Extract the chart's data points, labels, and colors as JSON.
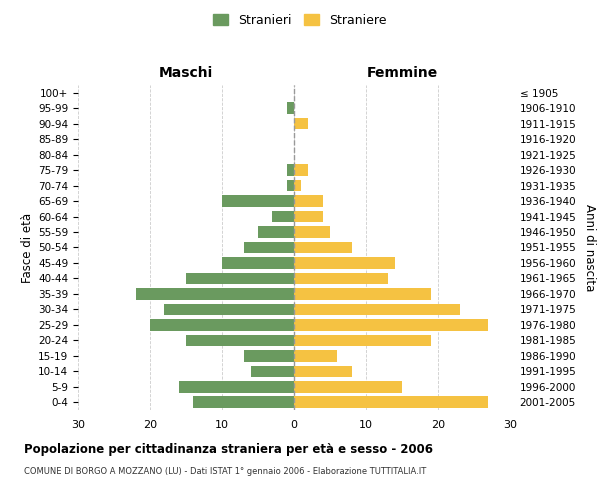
{
  "age_groups": [
    "0-4",
    "5-9",
    "10-14",
    "15-19",
    "20-24",
    "25-29",
    "30-34",
    "35-39",
    "40-44",
    "45-49",
    "50-54",
    "55-59",
    "60-64",
    "65-69",
    "70-74",
    "75-79",
    "80-84",
    "85-89",
    "90-94",
    "95-99",
    "100+"
  ],
  "birth_years": [
    "2001-2005",
    "1996-2000",
    "1991-1995",
    "1986-1990",
    "1981-1985",
    "1976-1980",
    "1971-1975",
    "1966-1970",
    "1961-1965",
    "1956-1960",
    "1951-1955",
    "1946-1950",
    "1941-1945",
    "1936-1940",
    "1931-1935",
    "1926-1930",
    "1921-1925",
    "1916-1920",
    "1911-1915",
    "1906-1910",
    "≤ 1905"
  ],
  "males": [
    14,
    16,
    6,
    7,
    15,
    20,
    18,
    22,
    15,
    10,
    7,
    5,
    3,
    10,
    1,
    1,
    0,
    0,
    0,
    1,
    0
  ],
  "females": [
    27,
    15,
    8,
    6,
    19,
    27,
    23,
    19,
    13,
    14,
    8,
    5,
    4,
    4,
    1,
    2,
    0,
    0,
    2,
    0,
    0
  ],
  "male_color": "#6a9a5f",
  "female_color": "#f5c242",
  "grid_color": "#cccccc",
  "center_line_color": "#999999",
  "title": "Popolazione per cittadinanza straniera per età e sesso - 2006",
  "subtitle": "COMUNE DI BORGO A MOZZANO (LU) - Dati ISTAT 1° gennaio 2006 - Elaborazione TUTTITALIA.IT",
  "xlabel_left": "Maschi",
  "xlabel_right": "Femmine",
  "ylabel_left": "Fasce di età",
  "ylabel_right": "Anni di nascita",
  "legend_male": "Stranieri",
  "legend_female": "Straniere",
  "xlim": 30,
  "background_color": "#ffffff"
}
